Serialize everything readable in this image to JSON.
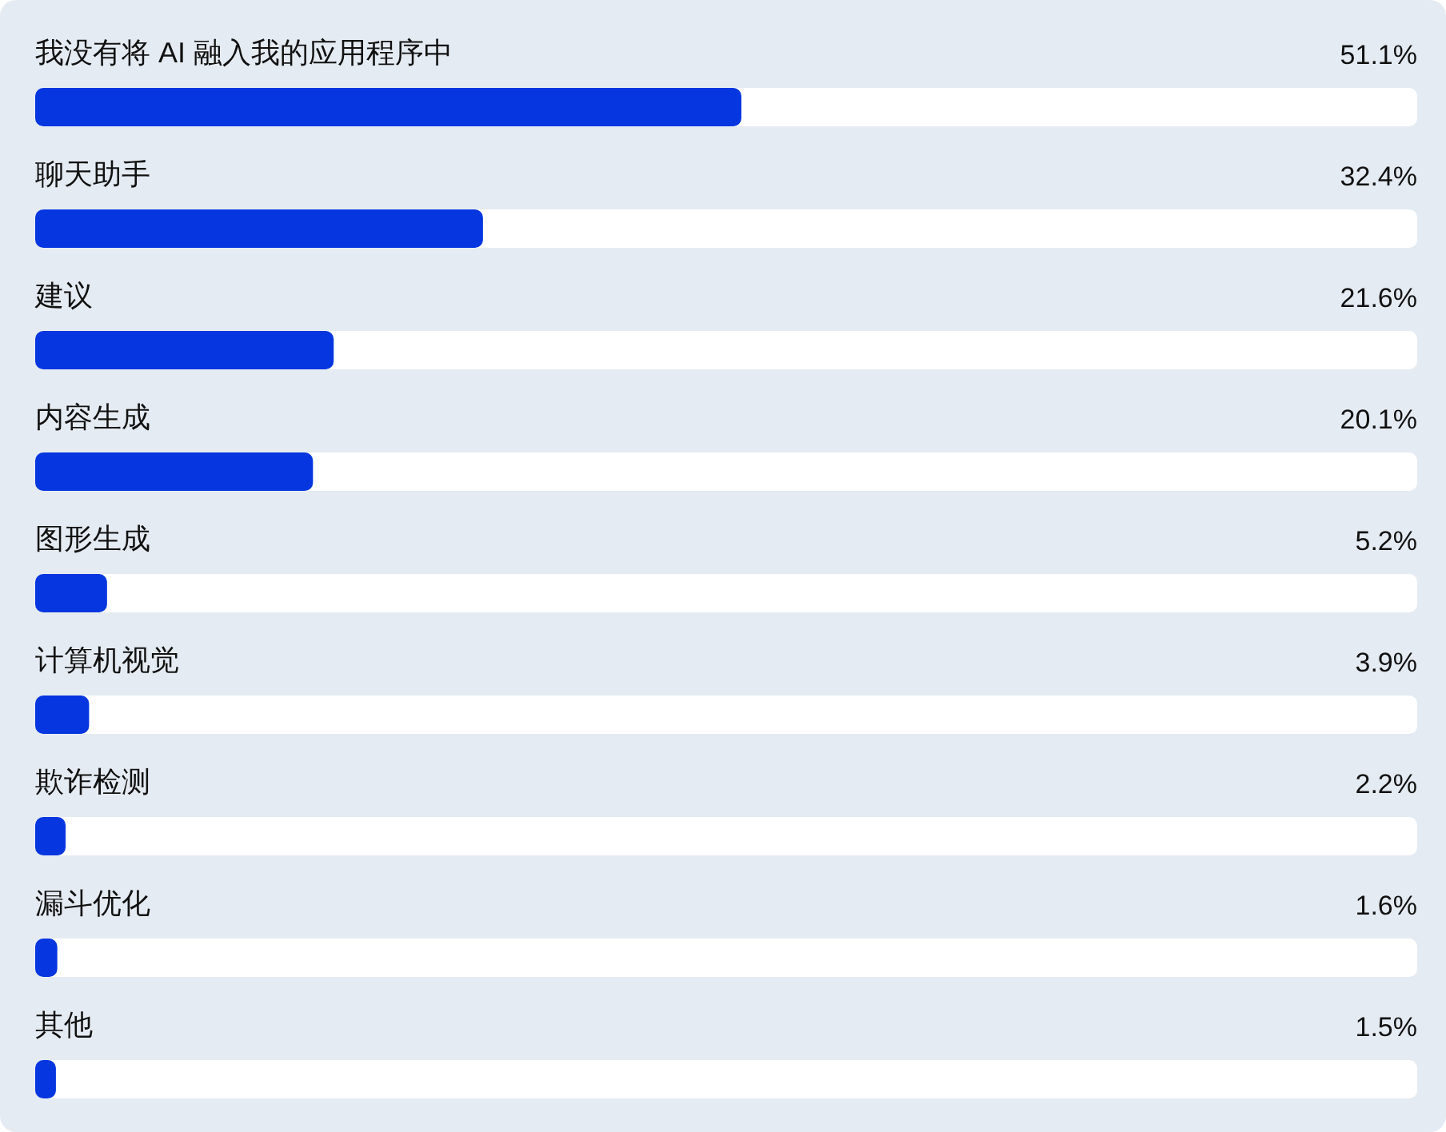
{
  "chart_data": {
    "type": "bar",
    "orientation": "horizontal",
    "categories": [
      "我没有将 AI 融入我的应用程序中",
      "聊天助手",
      "建议",
      "内容生成",
      "图形生成",
      "计算机视觉",
      "欺诈检测",
      "漏斗优化",
      "其他"
    ],
    "values": [
      51.1,
      32.4,
      21.6,
      20.1,
      5.2,
      3.9,
      2.2,
      1.6,
      1.5
    ],
    "value_labels": [
      "51.1%",
      "32.4%",
      "21.6%",
      "20.1%",
      "5.2%",
      "3.9%",
      "2.2%",
      "1.6%",
      "1.5%"
    ],
    "color": "#0636e0",
    "xlim": [
      0,
      100
    ]
  }
}
